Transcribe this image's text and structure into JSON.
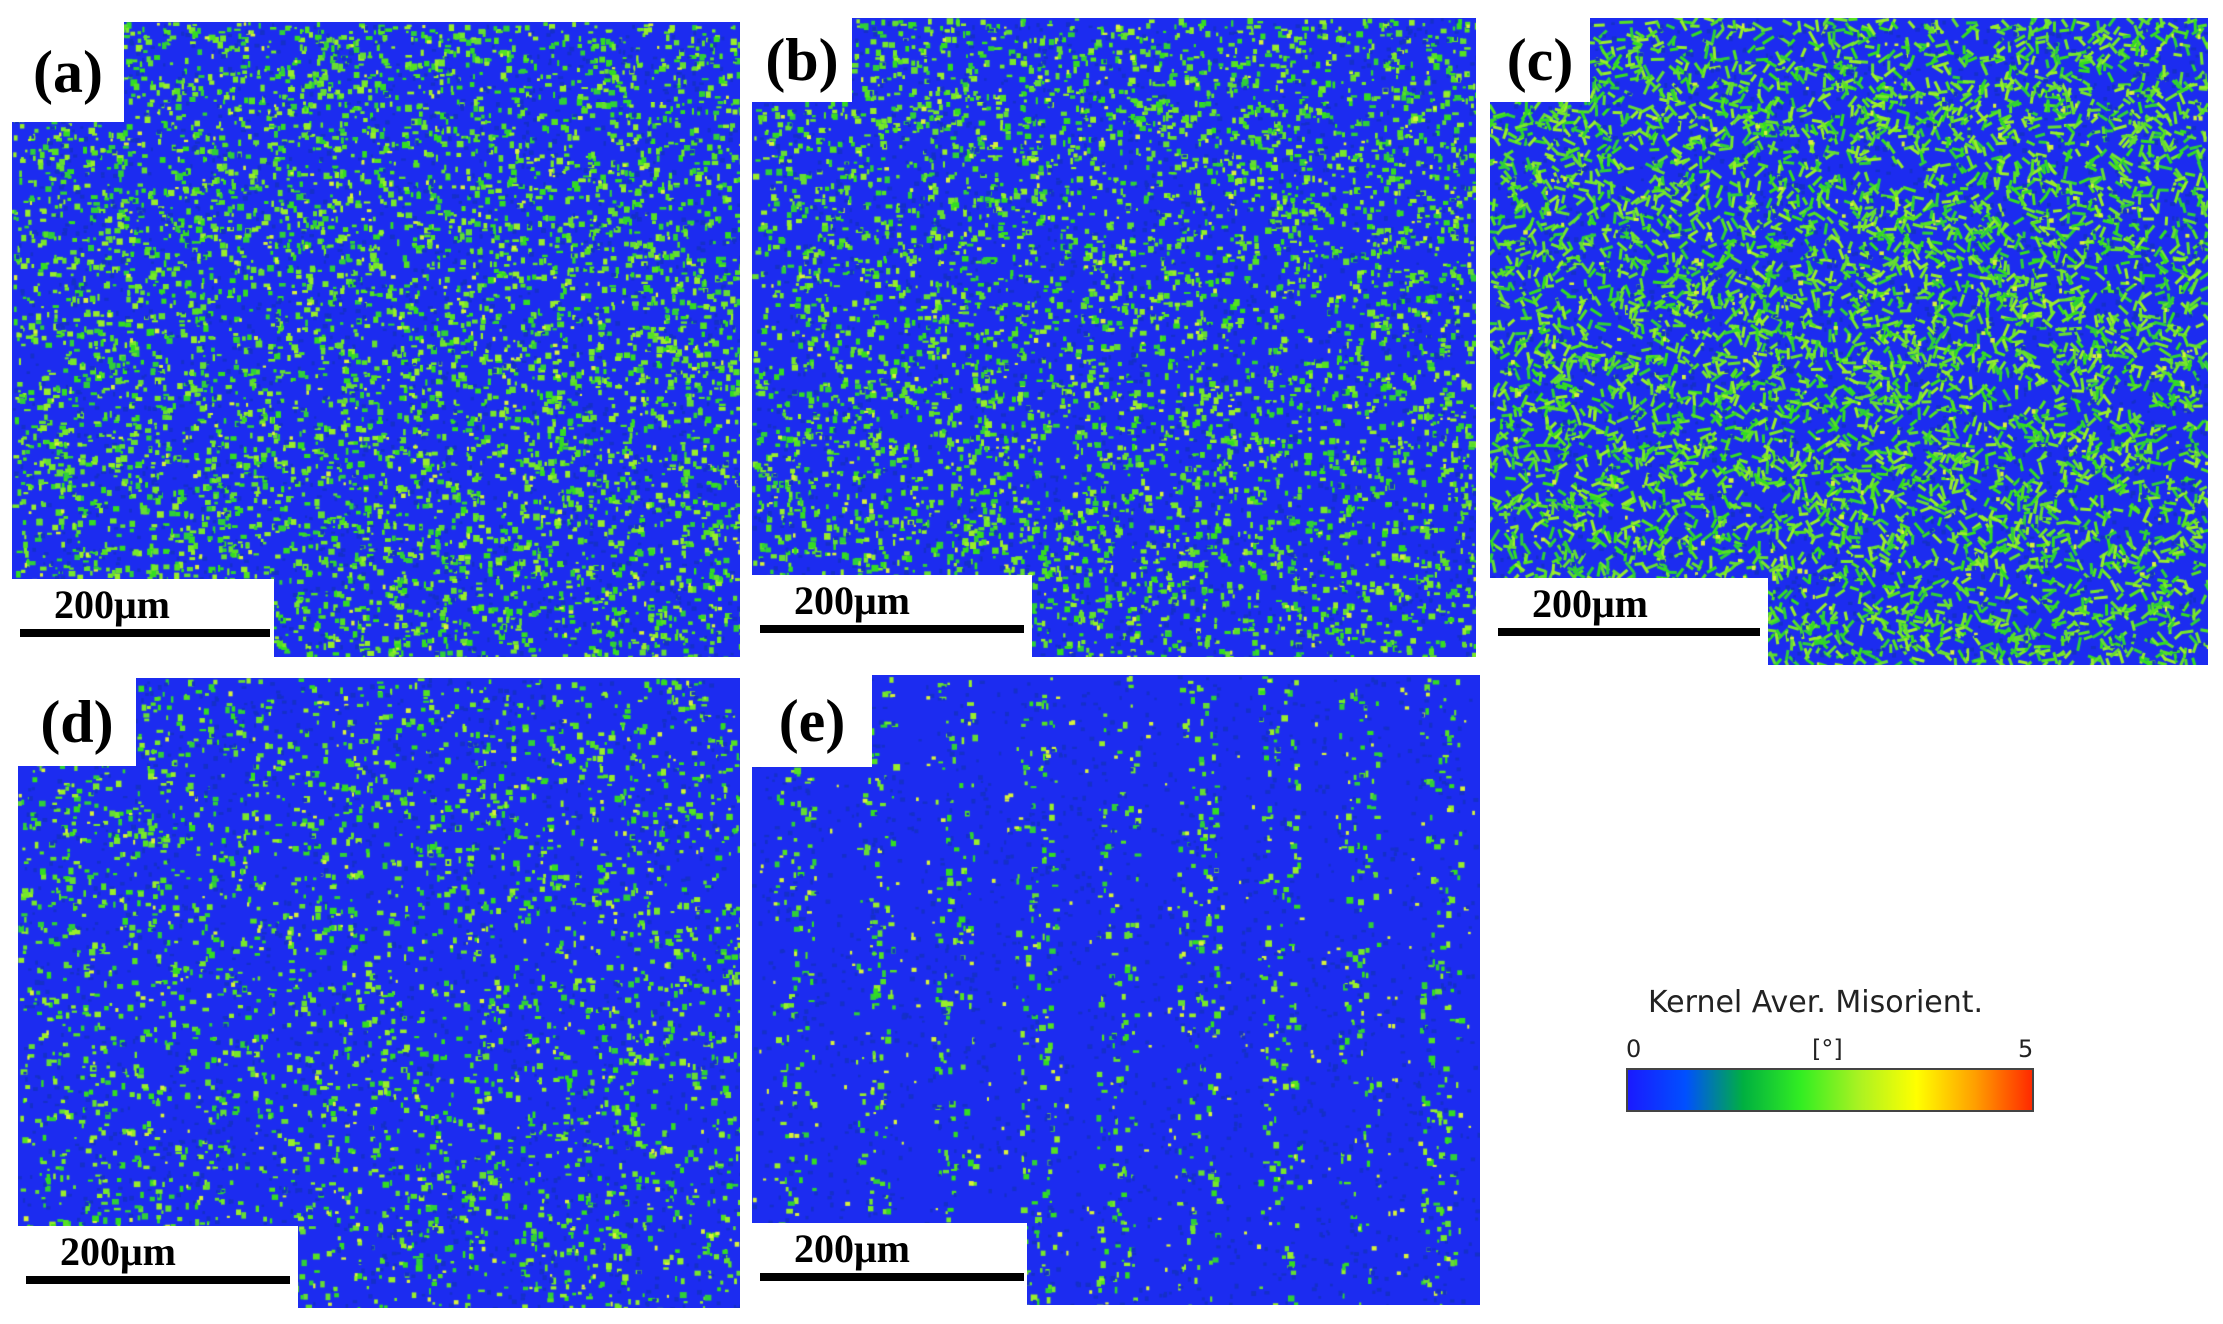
{
  "panels": [
    {
      "label": "(a)",
      "scale_text": "200μm",
      "level": 0.55,
      "texture": "fine"
    },
    {
      "label": "(b)",
      "scale_text": "200μm",
      "level": 0.5,
      "texture": "fine"
    },
    {
      "label": "(c)",
      "scale_text": "200μm",
      "level": 0.55,
      "texture": "elongated"
    },
    {
      "label": "(d)",
      "scale_text": "200μm",
      "level": 0.3,
      "texture": "fine"
    },
    {
      "label": "(e)",
      "scale_text": "200μm",
      "level": 0.12,
      "texture": "streaks"
    }
  ],
  "legend": {
    "title": "Kernel Aver. Misorient.",
    "min": "0",
    "unit": "[°]",
    "max": "5",
    "colors": [
      "#1a1aff",
      "#0050ff",
      "#00b040",
      "#33ee22",
      "#aaf222",
      "#ffff00",
      "#ffa000",
      "#ff2a00"
    ]
  }
}
